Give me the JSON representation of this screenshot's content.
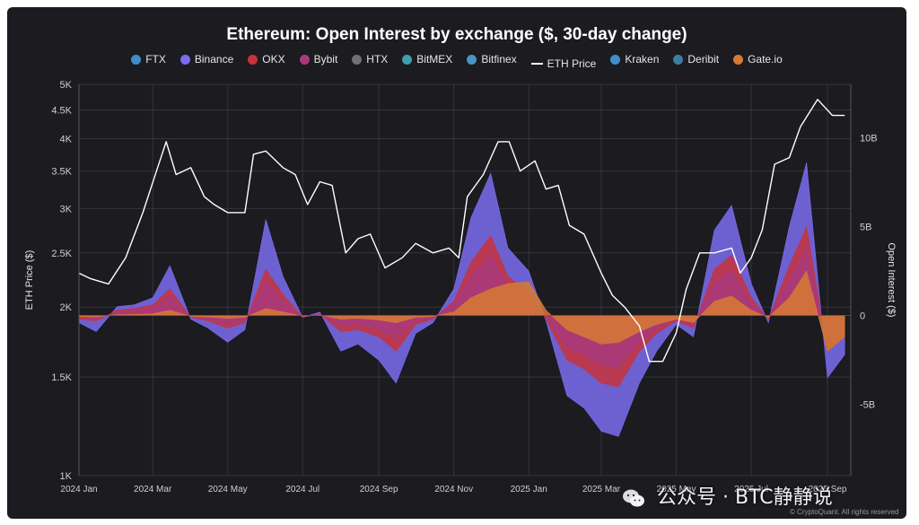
{
  "chart_data": {
    "type": "area",
    "title": "Ethereum: Open Interest by exchange ($, 30-day change)",
    "ylabel_left": "ETH Price ($)",
    "ylabel_right": "Open Interest ($)",
    "y_left_scale": "log",
    "y_left_lim": [
      1000,
      5000
    ],
    "y_left_ticks": [
      "1K",
      "1.5K",
      "2K",
      "2.5K",
      "3K",
      "3.5K",
      "4K",
      "4.5K",
      "5K"
    ],
    "y_left_tick_values": [
      1000,
      1500,
      2000,
      2500,
      3000,
      3500,
      4000,
      4500,
      5000
    ],
    "y_right_lim": [
      -9000000000,
      13000000000
    ],
    "y_right_ticks": [
      "-5B",
      "0",
      "5B",
      "10B"
    ],
    "y_right_tick_values": [
      -5000000000,
      0,
      5000000000,
      10000000000
    ],
    "x_ticks": [
      "2024 Jan",
      "2024 Mar",
      "2024 May",
      "2024 Jul",
      "2024 Sep",
      "2024 Nov",
      "2025 Jan",
      "2025 Mar",
      "2025 May",
      "2025 Jul",
      "2025 Sep"
    ],
    "x_tick_dates": [
      "2024-01-01",
      "2024-03-01",
      "2024-05-01",
      "2024-07-01",
      "2024-09-01",
      "2024-11-01",
      "2025-01-01",
      "2025-03-01",
      "2025-05-01",
      "2025-07-01",
      "2025-09-01"
    ],
    "grid": true,
    "legend_position": "top",
    "legend": [
      {
        "name": "FTX",
        "color": "#3f8fc7",
        "kind": "area"
      },
      {
        "name": "Binance",
        "color": "#7b6cf0",
        "kind": "area"
      },
      {
        "name": "OKX",
        "color": "#c8323c",
        "kind": "area"
      },
      {
        "name": "Bybit",
        "color": "#a83a7c",
        "kind": "area"
      },
      {
        "name": "HTX",
        "color": "#707074",
        "kind": "area"
      },
      {
        "name": "BitMEX",
        "color": "#3f9eb0",
        "kind": "area"
      },
      {
        "name": "Bitfinex",
        "color": "#4a94c2",
        "kind": "area"
      },
      {
        "name": "ETH Price",
        "color": "#ffffff",
        "kind": "line"
      },
      {
        "name": "Kraken",
        "color": "#3f8fc7",
        "kind": "area"
      },
      {
        "name": "Deribit",
        "color": "#3b7ea4",
        "kind": "area"
      },
      {
        "name": "Gate.io",
        "color": "#d57a34",
        "kind": "area"
      }
    ],
    "eth_price": {
      "dates": [
        "2024-01-01",
        "2024-01-10",
        "2024-01-25",
        "2024-02-08",
        "2024-02-22",
        "2024-03-05",
        "2024-03-12",
        "2024-03-20",
        "2024-04-01",
        "2024-04-12",
        "2024-04-20",
        "2024-05-01",
        "2024-05-15",
        "2024-05-22",
        "2024-06-01",
        "2024-06-15",
        "2024-06-25",
        "2024-07-05",
        "2024-07-15",
        "2024-07-25",
        "2024-08-05",
        "2024-08-15",
        "2024-08-25",
        "2024-09-06",
        "2024-09-20",
        "2024-10-01",
        "2024-10-15",
        "2024-10-28",
        "2024-11-05",
        "2024-11-12",
        "2024-11-25",
        "2024-12-07",
        "2024-12-16",
        "2024-12-25",
        "2025-01-06",
        "2025-01-15",
        "2025-01-25",
        "2025-02-03",
        "2025-02-15",
        "2025-03-01",
        "2025-03-10",
        "2025-03-20",
        "2025-04-01",
        "2025-04-09",
        "2025-04-20",
        "2025-05-01",
        "2025-05-09",
        "2025-05-20",
        "2025-06-01",
        "2025-06-15",
        "2025-06-22",
        "2025-07-01",
        "2025-07-10",
        "2025-07-20",
        "2025-08-01",
        "2025-08-10",
        "2025-08-24",
        "2025-09-05",
        "2025-09-15"
      ],
      "values": [
        2300,
        2250,
        2200,
        2450,
        2950,
        3550,
        3950,
        3450,
        3550,
        3150,
        3050,
        2950,
        2950,
        3750,
        3800,
        3550,
        3450,
        3050,
        3350,
        3300,
        2500,
        2650,
        2700,
        2350,
        2450,
        2600,
        2500,
        2550,
        2450,
        3150,
        3450,
        3950,
        3950,
        3500,
        3650,
        3250,
        3300,
        2800,
        2700,
        2300,
        2100,
        2000,
        1850,
        1600,
        1600,
        1800,
        2150,
        2500,
        2500,
        2550,
        2300,
        2450,
        2750,
        3600,
        3700,
        4200,
        4700,
        4400,
        4400
      ]
    },
    "open_interest_30d_change": {
      "unit": "USD",
      "dates": [
        "2024-01-01",
        "2024-01-15",
        "2024-02-01",
        "2024-02-15",
        "2024-03-01",
        "2024-03-15",
        "2024-04-01",
        "2024-04-15",
        "2024-05-01",
        "2024-05-15",
        "2024-06-01",
        "2024-06-15",
        "2024-07-01",
        "2024-07-15",
        "2024-08-01",
        "2024-08-15",
        "2024-09-01",
        "2024-09-15",
        "2024-10-01",
        "2024-10-15",
        "2024-11-01",
        "2024-11-15",
        "2024-12-01",
        "2024-12-15",
        "2025-01-01",
        "2025-01-15",
        "2025-02-01",
        "2025-02-15",
        "2025-03-01",
        "2025-03-15",
        "2025-04-01",
        "2025-04-15",
        "2025-05-01",
        "2025-05-15",
        "2025-06-01",
        "2025-06-15",
        "2025-07-01",
        "2025-07-15",
        "2025-08-01",
        "2025-08-15",
        "2025-09-01",
        "2025-09-15"
      ],
      "series": [
        {
          "name": "Binance",
          "values": [
            -400000000,
            -900000000,
            500000000,
            600000000,
            1000000000,
            2800000000,
            -200000000,
            -700000000,
            -1500000000,
            -800000000,
            5400000000,
            2200000000,
            -100000000,
            200000000,
            -2000000000,
            -1600000000,
            -2500000000,
            -3800000000,
            -1000000000,
            -400000000,
            1500000000,
            5500000000,
            8000000000,
            3800000000,
            2500000000,
            -300000000,
            -4500000000,
            -5200000000,
            -6500000000,
            -6800000000,
            -3800000000,
            -2000000000,
            -500000000,
            -1200000000,
            4800000000,
            6200000000,
            1800000000,
            -400000000,
            5000000000,
            8600000000,
            -3500000000,
            -2200000000
          ]
        },
        {
          "name": "OKX",
          "values": [
            -200000000,
            -300000000,
            300000000,
            400000000,
            600000000,
            1500000000,
            -100000000,
            -300000000,
            -700000000,
            -400000000,
            2600000000,
            1200000000,
            -100000000,
            100000000,
            -900000000,
            -800000000,
            -1200000000,
            -2000000000,
            -500000000,
            -200000000,
            800000000,
            3000000000,
            4500000000,
            2200000000,
            1300000000,
            -200000000,
            -2500000000,
            -3000000000,
            -3800000000,
            -4000000000,
            -2000000000,
            -1000000000,
            -300000000,
            -700000000,
            2600000000,
            3400000000,
            1000000000,
            -200000000,
            2800000000,
            5000000000,
            -2000000000,
            -1200000000
          ]
        },
        {
          "name": "Bybit",
          "values": [
            -100000000,
            -200000000,
            200000000,
            300000000,
            400000000,
            1100000000,
            -100000000,
            -200000000,
            -500000000,
            -300000000,
            1900000000,
            800000000,
            -100000000,
            100000000,
            -600000000,
            -500000000,
            -800000000,
            -1300000000,
            -300000000,
            -100000000,
            600000000,
            2200000000,
            3400000000,
            1700000000,
            1000000000,
            -100000000,
            -1800000000,
            -2200000000,
            -2800000000,
            -2900000000,
            -1500000000,
            -700000000,
            -200000000,
            -500000000,
            1900000000,
            2500000000,
            700000000,
            -100000000,
            2000000000,
            3800000000,
            -1500000000,
            -900000000
          ]
        },
        {
          "name": "Gate.io",
          "values": [
            -50000000,
            -80000000,
            50000000,
            60000000,
            100000000,
            300000000,
            -50000000,
            -80000000,
            -150000000,
            -100000000,
            400000000,
            200000000,
            -30000000,
            30000000,
            -200000000,
            -150000000,
            -250000000,
            -400000000,
            -100000000,
            -50000000,
            200000000,
            1000000000,
            1500000000,
            1800000000,
            1900000000,
            300000000,
            -800000000,
            -1200000000,
            -1600000000,
            -1500000000,
            -900000000,
            -500000000,
            -200000000,
            -400000000,
            800000000,
            1100000000,
            300000000,
            -100000000,
            1000000000,
            2500000000,
            -2000000000,
            -1200000000
          ]
        }
      ]
    }
  },
  "watermark": {
    "text": "公众号 · BTC静静说",
    "icon": "wechat-icon"
  },
  "credit": "© CryptoQuant. All rights reserved"
}
